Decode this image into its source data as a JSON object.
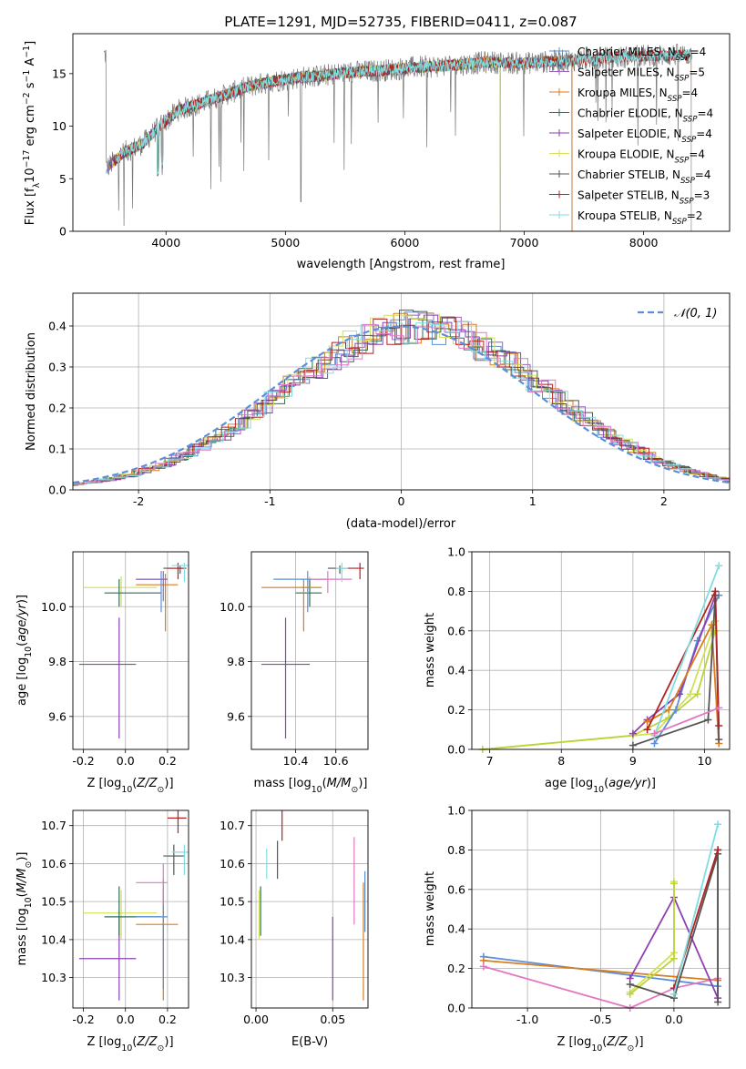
{
  "title": "PLATE=1291, MJD=52735, FIBERID=0411, z=0.087",
  "colors": {
    "Chabrier MILES": "#5b8fd9",
    "Salpeter MILES": "#9467bd",
    "Kroupa MILES": "#d97d1e",
    "Chabrier ELODIE": "#2e6e5a",
    "Salpeter ELODIE": "#8e3fb0",
    "Kroupa ELODIE": "#d4e157",
    "Chabrier STELIB": "#555555",
    "Salpeter STELIB": "#b22222",
    "Kroupa STELIB": "#80dde0",
    "pink": "#e377c2",
    "olive": "#bcd33a",
    "orange": "#e4732c"
  },
  "chart_data": [
    {
      "id": "spectrum",
      "type": "line",
      "xlabel": "wavelength [Angstrom, rest frame]",
      "ylabel": "Flux [f_λ10^-17 erg cm^-2 s^-1 A^-1]",
      "xlim": [
        3220,
        8720
      ],
      "ylim": [
        0,
        18.8
      ],
      "xticks": [
        4000,
        5000,
        6000,
        7000,
        8000
      ],
      "yticks": [
        0,
        5,
        10,
        15
      ],
      "grid": false,
      "legend_position": "right",
      "legend": [
        "Chabrier MILES, N_SSP=4",
        "Salpeter MILES, N_SSP=5",
        "Kroupa MILES, N_SSP=4",
        "Chabrier ELODIE, N_SSP=4",
        "Salpeter ELODIE, N_SSP=4",
        "Kroupa ELODIE, N_SSP=4",
        "Chabrier STELIB, N_SSP=4",
        "Salpeter STELIB, N_SSP=3",
        "Kroupa STELIB, N_SSP=2"
      ],
      "continuum": [
        [
          3500,
          6.0
        ],
        [
          3650,
          7.5
        ],
        [
          3800,
          8.3
        ],
        [
          3950,
          10.0
        ],
        [
          4100,
          11.5
        ],
        [
          4300,
          12.2
        ],
        [
          4500,
          13.0
        ],
        [
          4700,
          13.8
        ],
        [
          4900,
          14.3
        ],
        [
          5100,
          14.6
        ],
        [
          5300,
          14.8
        ],
        [
          5500,
          15.1
        ],
        [
          5800,
          15.3
        ],
        [
          6100,
          15.6
        ],
        [
          6400,
          15.8
        ],
        [
          6700,
          16.1
        ],
        [
          7000,
          16.0
        ],
        [
          7300,
          16.2
        ],
        [
          7600,
          16.4
        ],
        [
          8000,
          16.7
        ],
        [
          8400,
          16.8
        ]
      ]
    },
    {
      "id": "residuals",
      "type": "line",
      "xlabel": "(data-model)/error",
      "ylabel": "Normed distribution",
      "xlim": [
        -2.5,
        2.5
      ],
      "ylim": [
        0,
        0.48
      ],
      "xticks": [
        -2,
        -1,
        0,
        1,
        2
      ],
      "yticks": [
        0.0,
        0.1,
        0.2,
        0.3,
        0.4
      ],
      "grid": true,
      "legend_position": "top-right",
      "legend": [
        "N(0,1)"
      ],
      "gaussian": {
        "mean": 0,
        "sigma": 1
      }
    },
    {
      "id": "Z-vs-age",
      "type": "scatter",
      "xlabel": "Z [log10(Z/Z☉)]",
      "ylabel": "age [log10(age/yr)]",
      "xlim": [
        -0.25,
        0.3
      ],
      "ylim": [
        9.48,
        10.2
      ],
      "xticks": [
        -0.2,
        0.0,
        0.2
      ],
      "yticks": [
        9.6,
        9.8,
        10.0
      ],
      "grid": true,
      "points": [
        {
          "c": "Salpeter ELODIE",
          "x": -0.03,
          "xe": [
            -0.22,
            0.05
          ],
          "y": 9.79,
          "ye": [
            9.52,
            9.96
          ]
        },
        {
          "c": "Kroupa ELODIE",
          "x": -0.02,
          "xe": [
            -0.2,
            0.15
          ],
          "y": 10.07,
          "ye": [
            10.0,
            10.11
          ]
        },
        {
          "c": "Chabrier ELODIE",
          "x": -0.03,
          "xe": [
            -0.1,
            0.17
          ],
          "y": 10.05,
          "ye": [
            10.0,
            10.1
          ]
        },
        {
          "c": "Kroupa MILES",
          "x": 0.19,
          "xe": [
            0.05,
            0.25
          ],
          "y": 10.08,
          "ye": [
            9.91,
            10.12
          ]
        },
        {
          "c": "Chabrier MILES",
          "x": 0.17,
          "xe": [
            0.05,
            0.2
          ],
          "y": 10.1,
          "ye": [
            9.98,
            10.13
          ]
        },
        {
          "c": "Salpeter MILES",
          "x": 0.18,
          "xe": [
            0.05,
            0.2
          ],
          "y": 10.1,
          "ye": [
            10.02,
            10.13
          ]
        },
        {
          "c": "Chabrier STELIB",
          "x": 0.26,
          "xe": [
            0.18,
            0.28
          ],
          "y": 10.14,
          "ye": [
            10.12,
            10.15
          ]
        },
        {
          "c": "Salpeter STELIB",
          "x": 0.25,
          "xe": [
            0.2,
            0.29
          ],
          "y": 10.14,
          "ye": [
            10.1,
            10.16
          ]
        },
        {
          "c": "Kroupa STELIB",
          "x": 0.28,
          "xe": [
            0.22,
            0.3
          ],
          "y": 10.15,
          "ye": [
            10.09,
            10.16
          ]
        }
      ]
    },
    {
      "id": "mass-vs-age",
      "type": "scatter",
      "xlabel": "mass [log10(M/M☉)]",
      "ylabel": "",
      "xlim": [
        10.18,
        10.76
      ],
      "ylim": [
        9.48,
        10.2
      ],
      "xticks": [
        10.4,
        10.6
      ],
      "yticks": [
        9.6,
        9.8,
        10.0
      ],
      "grid": true,
      "points": [
        {
          "c": "Salpeter ELODIE",
          "x": 10.35,
          "xe": [
            10.23,
            10.47
          ],
          "y": 9.79,
          "ye": [
            9.52,
            9.96
          ]
        },
        {
          "c": "Kroupa ELODIE",
          "x": 10.47,
          "xe": [
            10.4,
            10.52
          ],
          "y": 10.07,
          "ye": [
            10.0,
            10.11
          ]
        },
        {
          "c": "Chabrier ELODIE",
          "x": 10.47,
          "xe": [
            10.4,
            10.53
          ],
          "y": 10.05,
          "ye": [
            10.0,
            10.1
          ]
        },
        {
          "c": "Kroupa MILES",
          "x": 10.44,
          "xe": [
            10.23,
            10.53
          ],
          "y": 10.07,
          "ye": [
            9.91,
            10.1
          ]
        },
        {
          "c": "Chabrier MILES",
          "x": 10.46,
          "xe": [
            10.29,
            10.56
          ],
          "y": 10.1,
          "ye": [
            9.98,
            10.13
          ]
        },
        {
          "c": "pink",
          "x": 10.56,
          "xe": [
            10.48,
            10.68
          ],
          "y": 10.1,
          "ye": [
            10.05,
            10.13
          ]
        },
        {
          "c": "Chabrier STELIB",
          "x": 10.62,
          "xe": [
            10.56,
            10.66
          ],
          "y": 10.14,
          "ye": [
            10.12,
            10.15
          ]
        },
        {
          "c": "Salpeter STELIB",
          "x": 10.72,
          "xe": [
            10.66,
            10.74
          ],
          "y": 10.14,
          "ye": [
            10.1,
            10.16
          ]
        },
        {
          "c": "Kroupa STELIB",
          "x": 10.63,
          "xe": [
            10.6,
            10.66
          ],
          "y": 10.14,
          "ye": [
            10.09,
            10.16
          ]
        }
      ]
    },
    {
      "id": "age-vs-weight",
      "type": "line",
      "xlabel": "age [log10(age/yr)]",
      "ylabel": "mass weight",
      "xlim": [
        6.75,
        10.35
      ],
      "ylim": [
        0,
        1.0
      ],
      "xticks": [
        7,
        8,
        9,
        10
      ],
      "yticks": [
        0.0,
        0.2,
        0.4,
        0.6,
        0.8,
        1.0
      ],
      "grid": true,
      "series": [
        {
          "c": "Kroupa ELODIE",
          "x": [
            6.9,
            9.3,
            9.8,
            10.15
          ],
          "y": [
            0.0,
            0.08,
            0.28,
            0.65
          ]
        },
        {
          "c": "olive",
          "x": [
            6.9,
            9.0,
            9.5,
            9.9,
            10.15
          ],
          "y": [
            0.0,
            0.07,
            0.16,
            0.28,
            0.6
          ]
        },
        {
          "c": "Chabrier MILES",
          "x": [
            9.3,
            9.6,
            9.9,
            10.2
          ],
          "y": [
            0.03,
            0.2,
            0.55,
            0.78
          ]
        },
        {
          "c": "Salpeter ELODIE",
          "x": [
            9.0,
            9.2,
            9.65,
            10.15
          ],
          "y": [
            0.08,
            0.15,
            0.28,
            0.78
          ]
        },
        {
          "c": "Kroupa MILES",
          "x": [
            9.2,
            9.5,
            10.1,
            10.2
          ],
          "y": [
            0.14,
            0.2,
            0.63,
            0.03
          ]
        },
        {
          "c": "Chabrier STELIB",
          "x": [
            9.0,
            10.05,
            10.15,
            10.2
          ],
          "y": [
            0.02,
            0.15,
            0.78,
            0.05
          ]
        },
        {
          "c": "Salpeter STELIB",
          "x": [
            9.2,
            10.15,
            10.2
          ],
          "y": [
            0.1,
            0.8,
            0.12
          ]
        },
        {
          "c": "Kroupa STELIB",
          "x": [
            9.3,
            10.2
          ],
          "y": [
            0.07,
            0.93
          ]
        },
        {
          "c": "pink",
          "x": [
            9.3,
            10.2
          ],
          "y": [
            0.08,
            0.21
          ]
        }
      ]
    },
    {
      "id": "Z-vs-mass",
      "type": "scatter",
      "xlabel": "Z [log10(Z/Z☉)]",
      "ylabel": "mass [log10(M/M☉)]",
      "xlim": [
        -0.25,
        0.3
      ],
      "ylim": [
        10.22,
        10.74
      ],
      "xticks": [
        -0.2,
        0.0,
        0.2
      ],
      "yticks": [
        10.3,
        10.4,
        10.5,
        10.6,
        10.7
      ],
      "grid": true,
      "points": [
        {
          "c": "Salpeter ELODIE",
          "x": -0.03,
          "xe": [
            -0.22,
            0.05
          ],
          "y": 10.35,
          "ye": [
            10.24,
            10.46
          ]
        },
        {
          "c": "Kroupa ELODIE",
          "x": -0.02,
          "xe": [
            -0.2,
            0.15
          ],
          "y": 10.47,
          "ye": [
            10.4,
            10.53
          ]
        },
        {
          "c": "Chabrier ELODIE",
          "x": -0.03,
          "xe": [
            -0.1,
            0.17
          ],
          "y": 10.46,
          "ye": [
            10.41,
            10.54
          ]
        },
        {
          "c": "Kroupa MILES",
          "x": 0.18,
          "xe": [
            0.05,
            0.25
          ],
          "y": 10.44,
          "ye": [
            10.24,
            10.53
          ]
        },
        {
          "c": "Chabrier MILES",
          "x": 0.18,
          "xe": [
            0.05,
            0.2
          ],
          "y": 10.46,
          "ye": [
            10.27,
            10.56
          ]
        },
        {
          "c": "pink",
          "x": 0.18,
          "xe": [
            0.05,
            0.2
          ],
          "y": 10.55,
          "ye": [
            10.49,
            10.6
          ]
        },
        {
          "c": "Chabrier STELIB",
          "x": 0.23,
          "xe": [
            0.18,
            0.28
          ],
          "y": 10.62,
          "ye": [
            10.57,
            10.65
          ]
        },
        {
          "c": "Salpeter STELIB",
          "x": 0.25,
          "xe": [
            0.2,
            0.29
          ],
          "y": 10.72,
          "ye": [
            10.68,
            10.74
          ]
        },
        {
          "c": "Kroupa STELIB",
          "x": 0.28,
          "xe": [
            0.22,
            0.3
          ],
          "y": 10.63,
          "ye": [
            10.57,
            10.65
          ]
        }
      ]
    },
    {
      "id": "EBV-vs-mass",
      "type": "scatter",
      "xlabel": "E(B-V)",
      "ylabel": "",
      "xlim": [
        -0.003,
        0.073
      ],
      "ylim": [
        10.22,
        10.74
      ],
      "xticks": [
        0.0,
        0.05
      ],
      "yticks": [
        10.3,
        10.4,
        10.5,
        10.6,
        10.7
      ],
      "grid": true,
      "points": [
        {
          "c": "Salpeter ELODIE",
          "x": 0.05,
          "y": 10.35,
          "ye": [
            10.24,
            10.46
          ]
        },
        {
          "c": "Kroupa ELODIE",
          "x": 0.002,
          "y": 10.47,
          "ye": [
            10.4,
            10.53
          ]
        },
        {
          "c": "Chabrier ELODIE",
          "x": 0.003,
          "y": 10.46,
          "ye": [
            10.41,
            10.54
          ]
        },
        {
          "c": "Kroupa MILES",
          "x": 0.07,
          "y": 10.4,
          "ye": [
            10.24,
            10.55
          ]
        },
        {
          "c": "Chabrier MILES",
          "x": 0.071,
          "y": 10.5,
          "ye": [
            10.42,
            10.58
          ]
        },
        {
          "c": "pink",
          "x": 0.064,
          "y": 10.55,
          "ye": [
            10.44,
            10.67
          ]
        },
        {
          "c": "Chabrier STELIB",
          "x": 0.014,
          "y": 10.6,
          "ye": [
            10.56,
            10.66
          ]
        },
        {
          "c": "Salpeter STELIB",
          "x": 0.017,
          "y": 10.7,
          "ye": [
            10.66,
            10.74
          ]
        },
        {
          "c": "Kroupa STELIB",
          "x": 0.007,
          "y": 10.61,
          "ye": [
            10.56,
            10.64
          ]
        }
      ]
    },
    {
      "id": "Z-vs-weight",
      "type": "line",
      "xlabel": "Z [log10(Z/Z☉)]",
      "ylabel": "mass weight",
      "xlim": [
        -1.38,
        0.38
      ],
      "ylim": [
        0,
        1.0
      ],
      "xticks": [
        -1.0,
        -0.5,
        0.0
      ],
      "yticks": [
        0.0,
        0.2,
        0.4,
        0.6,
        0.8,
        1.0
      ],
      "grid": true,
      "series": [
        {
          "c": "Chabrier MILES",
          "x": [
            -1.3,
            0.3
          ],
          "y": [
            0.26,
            0.11
          ]
        },
        {
          "c": "Kroupa MILES",
          "x": [
            -1.3,
            0.3
          ],
          "y": [
            0.24,
            0.14
          ]
        },
        {
          "c": "pink",
          "x": [
            -1.3,
            -0.3,
            0.0,
            0.3
          ],
          "y": [
            0.21,
            0.0,
            0.1,
            0.15
          ]
        },
        {
          "c": "Salpeter ELODIE",
          "x": [
            -0.3,
            0.0,
            0.3,
            0.3
          ],
          "y": [
            0.15,
            0.56,
            0.05,
            0.8
          ]
        },
        {
          "c": "Kroupa ELODIE",
          "x": [
            -0.3,
            0.0,
            0.0
          ],
          "y": [
            0.08,
            0.28,
            0.64
          ]
        },
        {
          "c": "olive",
          "x": [
            -0.3,
            0.0,
            0.0
          ],
          "y": [
            0.07,
            0.25,
            0.63
          ]
        },
        {
          "c": "Chabrier STELIB",
          "x": [
            -0.3,
            0.0,
            0.3,
            0.3
          ],
          "y": [
            0.12,
            0.05,
            0.78,
            0.03
          ]
        },
        {
          "c": "Salpeter STELIB",
          "x": [
            0.0,
            0.3
          ],
          "y": [
            0.1,
            0.8
          ]
        },
        {
          "c": "Kroupa STELIB",
          "x": [
            0.0,
            0.3
          ],
          "y": [
            0.07,
            0.93
          ]
        }
      ]
    }
  ]
}
